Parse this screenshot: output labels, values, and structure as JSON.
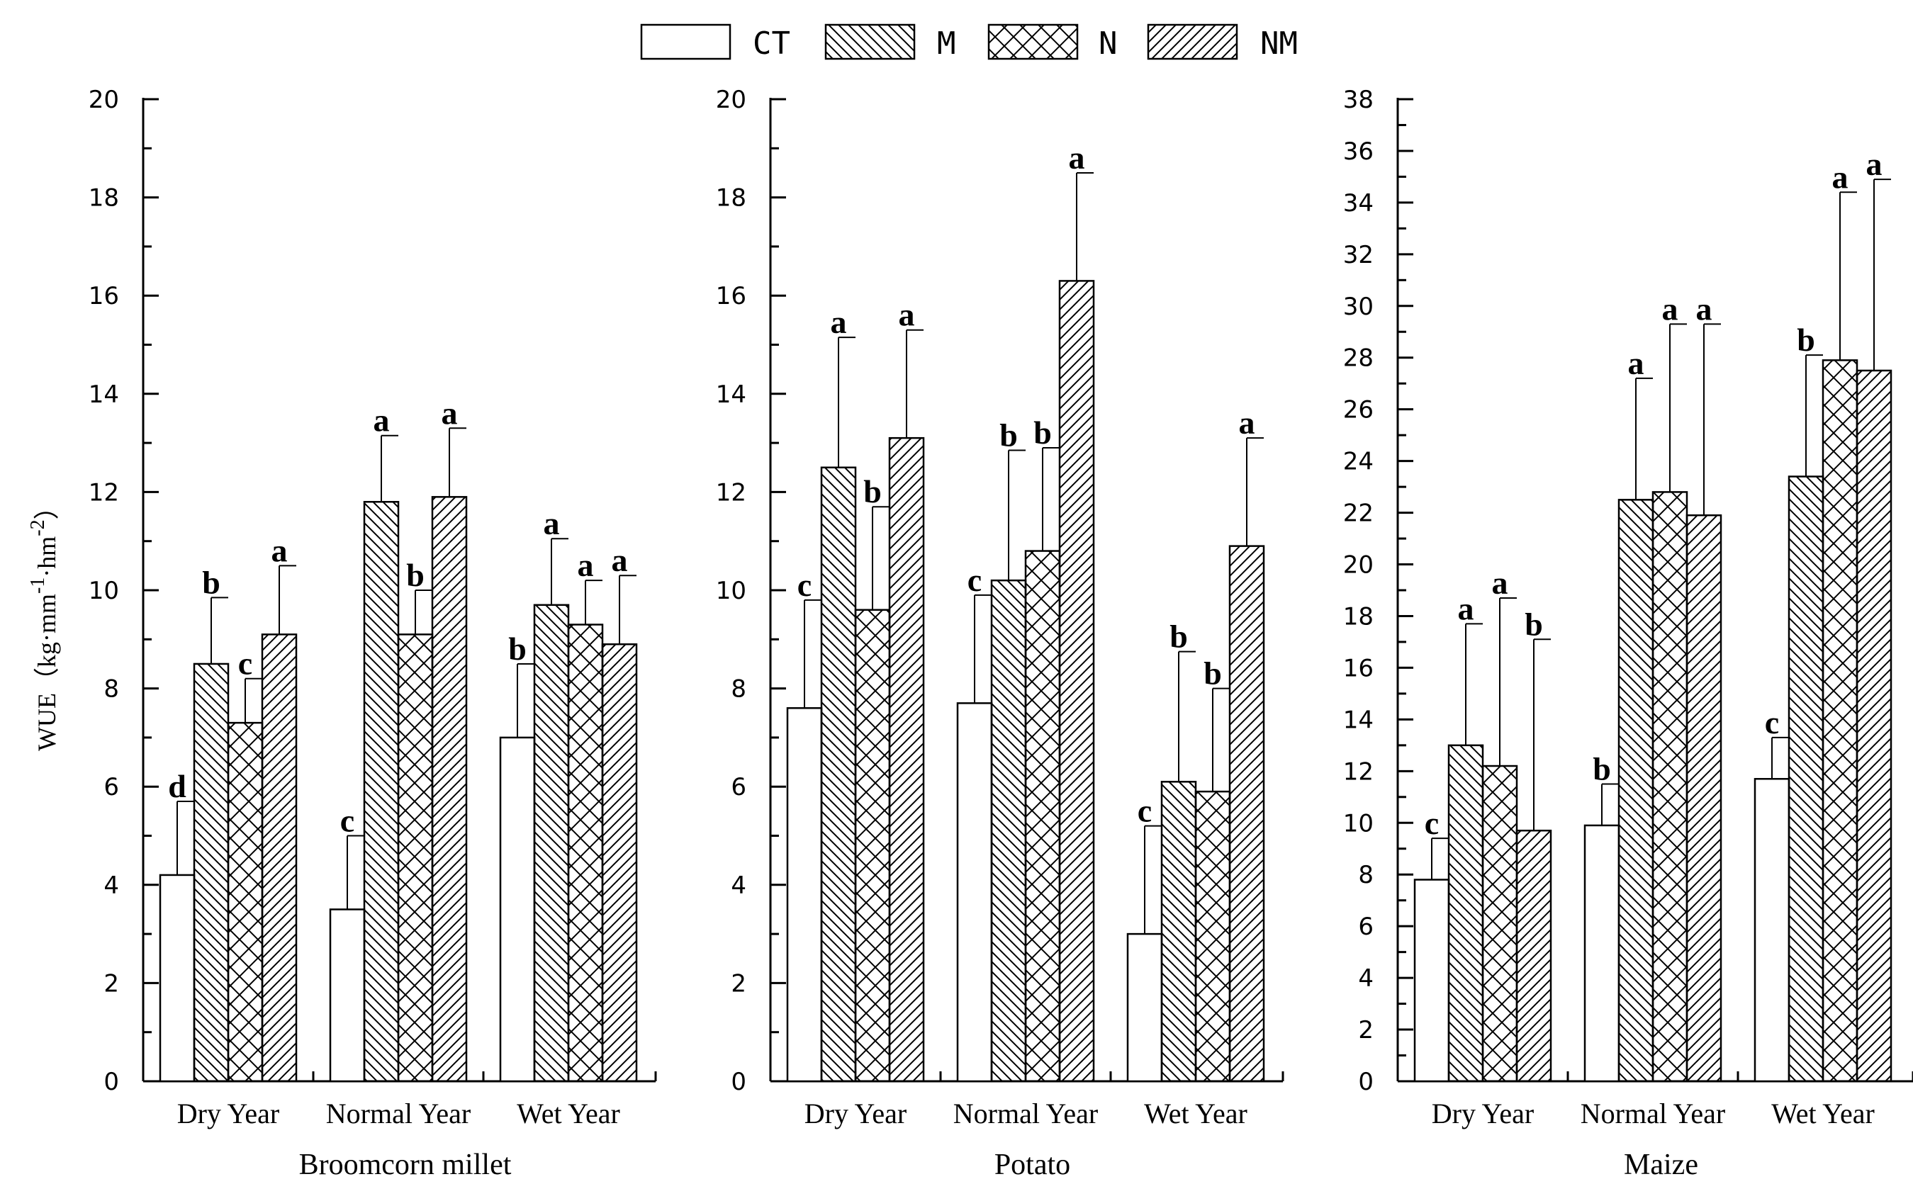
{
  "legend": [
    {
      "label": "CT",
      "pattern": "none"
    },
    {
      "label": "M",
      "pattern": "back"
    },
    {
      "label": "N",
      "pattern": "cross"
    },
    {
      "label": "NM",
      "pattern": "fwd"
    }
  ],
  "y_axis_label": {
    "main": "WUE（kg·mm",
    "sup1": "-1",
    "mid": "·hm",
    "sup2": "-2",
    "close": "）"
  },
  "chart_data": [
    {
      "type": "bar",
      "title": "Broomcorn millet",
      "categories": [
        "Dry Year",
        "Normal Year",
        "Wet Year"
      ],
      "ylim": [
        0,
        20
      ],
      "yticks": [
        0,
        2,
        4,
        6,
        8,
        10,
        12,
        14,
        16,
        18,
        20
      ],
      "series": [
        {
          "name": "CT",
          "values": [
            4.2,
            3.5,
            7.0
          ],
          "errors": [
            1.5,
            1.5,
            1.5
          ],
          "letters": [
            "d",
            "c",
            "b"
          ]
        },
        {
          "name": "M",
          "values": [
            8.5,
            11.8,
            9.7
          ],
          "errors": [
            1.35,
            1.35,
            1.35
          ],
          "letters": [
            "b",
            "a",
            "a"
          ]
        },
        {
          "name": "N",
          "values": [
            7.3,
            9.1,
            9.3
          ],
          "errors": [
            0.9,
            0.9,
            0.9
          ],
          "letters": [
            "c",
            "b",
            "a"
          ]
        },
        {
          "name": "NM",
          "values": [
            9.1,
            11.9,
            8.9
          ],
          "errors": [
            1.4,
            1.4,
            1.4
          ],
          "letters": [
            "a",
            "a",
            "a"
          ]
        }
      ]
    },
    {
      "type": "bar",
      "title": "Potato",
      "categories": [
        "Dry Year",
        "Normal Year",
        "Wet Year"
      ],
      "ylim": [
        0,
        20
      ],
      "yticks": [
        0,
        2,
        4,
        6,
        8,
        10,
        12,
        14,
        16,
        18,
        20
      ],
      "series": [
        {
          "name": "CT",
          "values": [
            7.6,
            7.7,
            3.0
          ],
          "errors": [
            2.2,
            2.2,
            2.2
          ],
          "letters": [
            "c",
            "c",
            "c"
          ]
        },
        {
          "name": "M",
          "values": [
            12.5,
            10.2,
            6.1
          ],
          "errors": [
            2.65,
            2.65,
            2.65
          ],
          "letters": [
            "a",
            "b",
            "b"
          ]
        },
        {
          "name": "N",
          "values": [
            9.6,
            10.8,
            5.9
          ],
          "errors": [
            2.1,
            2.1,
            2.1
          ],
          "letters": [
            "b",
            "b",
            "b"
          ]
        },
        {
          "name": "NM",
          "values": [
            13.1,
            16.3,
            10.9
          ],
          "errors": [
            2.2,
            2.2,
            2.2
          ],
          "letters": [
            "a",
            "a",
            "a"
          ]
        }
      ]
    },
    {
      "type": "bar",
      "title": "Maize",
      "categories": [
        "Dry Year",
        "Normal Year",
        "Wet Year"
      ],
      "ylim": [
        0,
        38
      ],
      "yticks": [
        0,
        2,
        4,
        6,
        8,
        10,
        12,
        14,
        16,
        18,
        20,
        22,
        24,
        26,
        28,
        30,
        32,
        34,
        36,
        38
      ],
      "series": [
        {
          "name": "CT",
          "values": [
            7.8,
            9.9,
            11.7
          ],
          "errors": [
            1.6,
            1.6,
            1.6
          ],
          "letters": [
            "c",
            "b",
            "c"
          ]
        },
        {
          "name": "M",
          "values": [
            13.0,
            22.5,
            23.4
          ],
          "errors": [
            4.7,
            4.7,
            4.7
          ],
          "letters": [
            "a",
            "a",
            "b"
          ]
        },
        {
          "name": "N",
          "values": [
            12.2,
            22.8,
            27.9
          ],
          "errors": [
            6.5,
            6.5,
            6.5
          ],
          "letters": [
            "a",
            "a",
            "a"
          ]
        },
        {
          "name": "NM",
          "values": [
            9.7,
            21.9,
            27.5
          ],
          "errors": [
            7.4,
            7.4,
            7.4
          ],
          "letters": [
            "b",
            "a",
            "a"
          ]
        }
      ]
    }
  ]
}
